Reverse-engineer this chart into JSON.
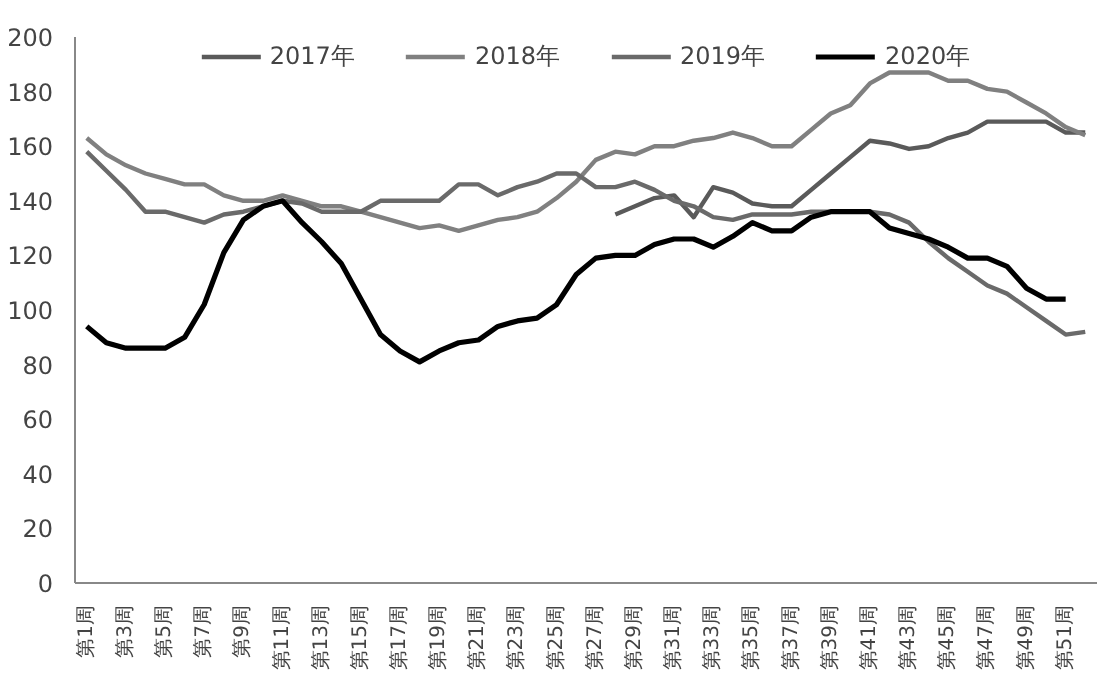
{
  "chart_data": {
    "type": "line",
    "categories": [
      "第1周",
      null,
      "第3周",
      null,
      "第5周",
      null,
      "第7周",
      null,
      "第9周",
      null,
      "第11周",
      null,
      "第13周",
      null,
      "第15周",
      null,
      "第17周",
      null,
      "第19周",
      null,
      "第21周",
      null,
      "第23周",
      null,
      "第25周",
      null,
      "第27周",
      null,
      "第29周",
      null,
      "第31周",
      null,
      "第33周",
      null,
      "第35周",
      null,
      "第37周",
      null,
      "第39周",
      null,
      "第41周",
      null,
      "第43周",
      null,
      "第45周",
      null,
      "第47周",
      null,
      "第49周",
      null,
      "第51周",
      null
    ],
    "series": [
      {
        "name": "2017年",
        "color": "#5a5a5a",
        "values": [
          null,
          null,
          null,
          null,
          null,
          null,
          null,
          null,
          null,
          null,
          null,
          null,
          null,
          null,
          null,
          null,
          null,
          null,
          null,
          null,
          null,
          null,
          null,
          null,
          null,
          null,
          null,
          135,
          138,
          141,
          142,
          134,
          145,
          143,
          139,
          138,
          138,
          144,
          150,
          156,
          162,
          161,
          159,
          160,
          163,
          165,
          169,
          169,
          169,
          169,
          165,
          165
        ]
      },
      {
        "name": "2018年",
        "color": "#808080",
        "values": [
          163,
          157,
          153,
          150,
          148,
          146,
          146,
          142,
          140,
          140,
          142,
          140,
          138,
          138,
          136,
          134,
          132,
          130,
          131,
          129,
          131,
          133,
          134,
          136,
          141,
          147,
          155,
          158,
          157,
          160,
          160,
          162,
          163,
          165,
          163,
          160,
          160,
          166,
          172,
          175,
          183,
          187,
          187,
          187,
          184,
          184,
          181,
          180,
          176,
          172,
          167,
          164
        ]
      },
      {
        "name": "2019年",
        "color": "#6a6a6a",
        "values": [
          158,
          151,
          144,
          136,
          136,
          134,
          132,
          135,
          136,
          138,
          140,
          139,
          136,
          136,
          136,
          140,
          140,
          140,
          140,
          146,
          146,
          142,
          145,
          147,
          150,
          150,
          145,
          145,
          147,
          144,
          140,
          138,
          134,
          133,
          135,
          135,
          135,
          136,
          136,
          136,
          136,
          135,
          132,
          125,
          119,
          114,
          109,
          106,
          101,
          96,
          91,
          92
        ]
      },
      {
        "name": "2020年",
        "color": "#000000",
        "values": [
          94,
          88,
          86,
          86,
          86,
          90,
          102,
          121,
          133,
          138,
          140,
          132,
          125,
          117,
          104,
          91,
          85,
          81,
          85,
          88,
          89,
          94,
          96,
          97,
          102,
          113,
          119,
          120,
          120,
          124,
          126,
          126,
          123,
          127,
          132,
          129,
          129,
          134,
          136,
          136,
          136,
          130,
          128,
          126,
          123,
          119,
          119,
          116,
          108,
          104,
          104,
          null
        ]
      }
    ],
    "ylim": [
      0,
      200
    ],
    "yticks": [
      0,
      20,
      40,
      60,
      80,
      100,
      120,
      140,
      160,
      180,
      200
    ],
    "grid": false,
    "legend": "top",
    "marker": "none",
    "line_style": "solid"
  }
}
